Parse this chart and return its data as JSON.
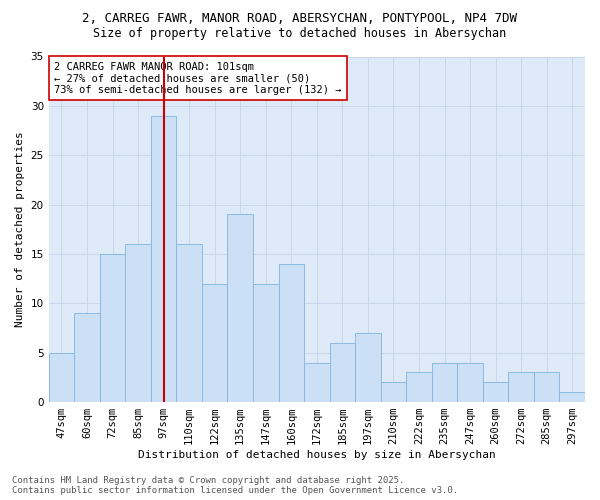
{
  "title1": "2, CARREG FAWR, MANOR ROAD, ABERSYCHAN, PONTYPOOL, NP4 7DW",
  "title2": "Size of property relative to detached houses in Abersychan",
  "xlabel": "Distribution of detached houses by size in Abersychan",
  "ylabel": "Number of detached properties",
  "categories": [
    "47sqm",
    "60sqm",
    "72sqm",
    "85sqm",
    "97sqm",
    "110sqm",
    "122sqm",
    "135sqm",
    "147sqm",
    "160sqm",
    "172sqm",
    "185sqm",
    "197sqm",
    "210sqm",
    "222sqm",
    "235sqm",
    "247sqm",
    "260sqm",
    "272sqm",
    "285sqm",
    "297sqm"
  ],
  "values": [
    5,
    9,
    15,
    16,
    29,
    16,
    12,
    19,
    12,
    14,
    4,
    6,
    7,
    2,
    3,
    4,
    4,
    2,
    3,
    3,
    1
  ],
  "bar_color": "#cce0f5",
  "bar_edge_color": "#7fb4e0",
  "grid_color": "#c8d8ec",
  "bg_color": "#deeaf8",
  "vline_x": 4,
  "vline_color": "#cc0000",
  "annotation_text": "2 CARREG FAWR MANOR ROAD: 101sqm\n← 27% of detached houses are smaller (50)\n73% of semi-detached houses are larger (132) →",
  "annotation_box_color": "#ffffff",
  "annotation_box_edge": "#cc0000",
  "ylim": [
    0,
    35
  ],
  "yticks": [
    0,
    5,
    10,
    15,
    20,
    25,
    30,
    35
  ],
  "footer1": "Contains HM Land Registry data © Crown copyright and database right 2025.",
  "footer2": "Contains public sector information licensed under the Open Government Licence v3.0.",
  "title_fontsize": 9,
  "subtitle_fontsize": 8.5,
  "axis_label_fontsize": 8,
  "tick_fontsize": 7.5,
  "annotation_fontsize": 7.5,
  "footer_fontsize": 6.5
}
